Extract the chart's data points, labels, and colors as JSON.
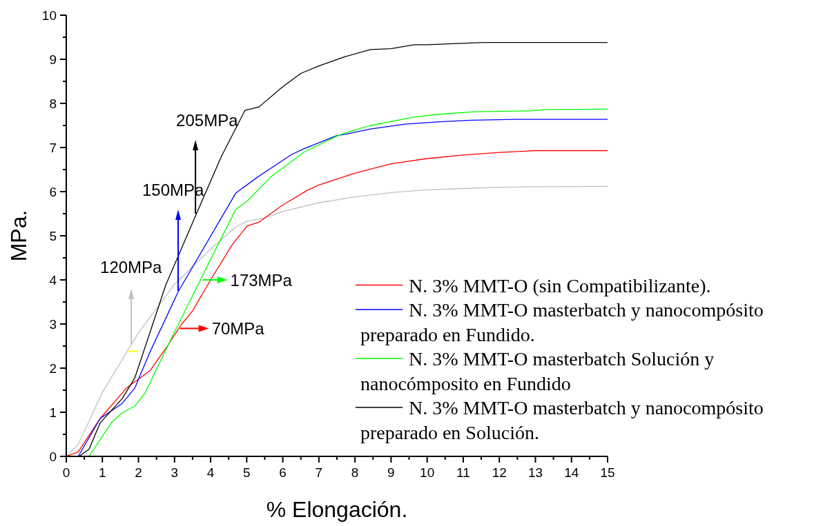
{
  "chart_data": {
    "type": "line",
    "xlabel": "% Elongación.",
    "ylabel": "MPa.",
    "xlim": [
      0,
      15
    ],
    "ylim": [
      0,
      10
    ],
    "xticks": [
      0,
      {
        "value": 0.5,
        "label": null
      },
      1,
      {
        "value": 1.5,
        "label": null
      },
      2,
      {
        "value": 2.5,
        "label": null
      },
      3,
      {
        "value": 3.5,
        "label": null
      },
      4,
      {
        "value": 4.5,
        "label": null
      },
      5,
      {
        "value": 5.5,
        "label": null
      },
      6,
      {
        "value": 6.5,
        "label": null
      },
      7,
      {
        "value": 7.5,
        "label": null
      },
      8,
      {
        "value": 8.5,
        "label": null
      },
      9,
      {
        "value": 9.5,
        "label": null
      },
      10,
      {
        "value": 10.5,
        "label": null
      },
      11,
      {
        "value": 11.5,
        "label": null
      },
      12,
      {
        "value": 12.5,
        "label": null
      },
      13,
      {
        "value": 13.5,
        "label": null
      },
      14,
      {
        "value": 14.5,
        "label": null
      },
      15
    ],
    "yticks": [
      0,
      {
        "value": 0.5,
        "label": null
      },
      1,
      {
        "value": 1.5,
        "label": null
      },
      2,
      {
        "value": 2.5,
        "label": null
      },
      3,
      {
        "value": 3.5,
        "label": null
      },
      4,
      {
        "value": 4.5,
        "label": null
      },
      5,
      {
        "value": 5.5,
        "label": null
      },
      6,
      {
        "value": 6.5,
        "label": null
      },
      7,
      {
        "value": 7.5,
        "label": null
      },
      8,
      {
        "value": 8.5,
        "label": null
      },
      9,
      {
        "value": 9.5,
        "label": null
      },
      10
    ],
    "grid": false,
    "legend": "bottom right",
    "marker": "none",
    "line_style": "solid",
    "series": [
      {
        "color": "#c0c0c0",
        "x": [
          0,
          0.33,
          1,
          2,
          3,
          4,
          4.7,
          5,
          5.5,
          6,
          7,
          8,
          9,
          10,
          11,
          12,
          13,
          15
        ],
        "values": [
          0,
          0.27,
          1.45,
          2.8,
          3.9,
          4.7,
          5.2,
          5.33,
          5.4,
          5.55,
          5.75,
          5.88,
          5.98,
          6.04,
          6.07,
          6.1,
          6.11,
          6.12
        ]
      },
      {
        "name": "N. 3% MMT-O (sin Compatibilizante).",
        "color": "#ff0000",
        "x": [
          0,
          0.33,
          0.94,
          1.67,
          2.33,
          2.8,
          3.2,
          3.5,
          4,
          4.6,
          5.01,
          5.34,
          6,
          6.68,
          7,
          8,
          9,
          10,
          11,
          12,
          13,
          15
        ],
        "values": [
          0,
          0.1,
          0.86,
          1.55,
          1.95,
          2.5,
          3,
          3.3,
          4,
          4.8,
          5.22,
          5.31,
          5.7,
          6.03,
          6.15,
          6.42,
          6.63,
          6.75,
          6.83,
          6.89,
          6.93,
          6.93
        ]
      },
      {
        "name": "N. 3% MMT-O masterbatch y nanocompósito preparado en Fundido.",
        "color": "#0000ff",
        "x": [
          0,
          0.33,
          0.94,
          1.55,
          1.9,
          2.3,
          3.1,
          4.7,
          5.3,
          6.24,
          6.58,
          7.5,
          7.73,
          8.43,
          9.39,
          10.27,
          11.23,
          12.45,
          15
        ],
        "values": [
          0,
          0,
          0.86,
          1.2,
          1.55,
          2.33,
          3.73,
          5.97,
          6.33,
          6.84,
          6.97,
          7.27,
          7.3,
          7.42,
          7.53,
          7.58,
          7.62,
          7.64,
          7.64
        ]
      },
      {
        "name": "N. 3% MMT-O masterbatch Solución y nanocómposito en Fundido",
        "color": "#00ff00",
        "x": [
          0,
          0.63,
          1.26,
          1.57,
          1.9,
          2.18,
          2.76,
          3.96,
          4.7,
          5.02,
          5.66,
          6.58,
          7.5,
          7.73,
          8.43,
          9.64,
          10.27,
          11.3,
          12.83,
          13.33,
          15
        ],
        "values": [
          0,
          0,
          0.77,
          1,
          1.14,
          1.43,
          2.42,
          4.4,
          5.6,
          5.79,
          6.33,
          6.89,
          7.26,
          7.33,
          7.5,
          7.69,
          7.75,
          7.81,
          7.83,
          7.86,
          7.87
        ]
      },
      {
        "name": "N. 3% MMT-O masterbatch y nanocompósito preparado en Solución.",
        "color": "#000000",
        "x": [
          0,
          0.35,
          0.63,
          0.94,
          1.55,
          1.9,
          2.76,
          3.58,
          4.3,
          4.95,
          5.34,
          6,
          6.5,
          7,
          7.73,
          8.43,
          9,
          9.64,
          10,
          11.55,
          15
        ],
        "values": [
          0,
          0,
          0.16,
          0.76,
          1.31,
          1.78,
          3.89,
          5.45,
          6.8,
          7.84,
          7.92,
          8.38,
          8.68,
          8.85,
          9.06,
          9.22,
          9.24,
          9.33,
          9.33,
          9.38,
          9.38
        ]
      }
    ],
    "annotations": [
      {
        "text": "120MPa",
        "x": 1.8,
        "y": 2.55
      },
      {
        "text": "150MPa",
        "x": 3.1,
        "y": 3.75
      },
      {
        "text": "205MPa",
        "x": 3.58,
        "y": 5.5
      },
      {
        "text": "173MPa",
        "x": 3.78,
        "y": 4
      },
      {
        "text": "70MPa",
        "x": 3.15,
        "y": 2.9
      }
    ]
  }
}
